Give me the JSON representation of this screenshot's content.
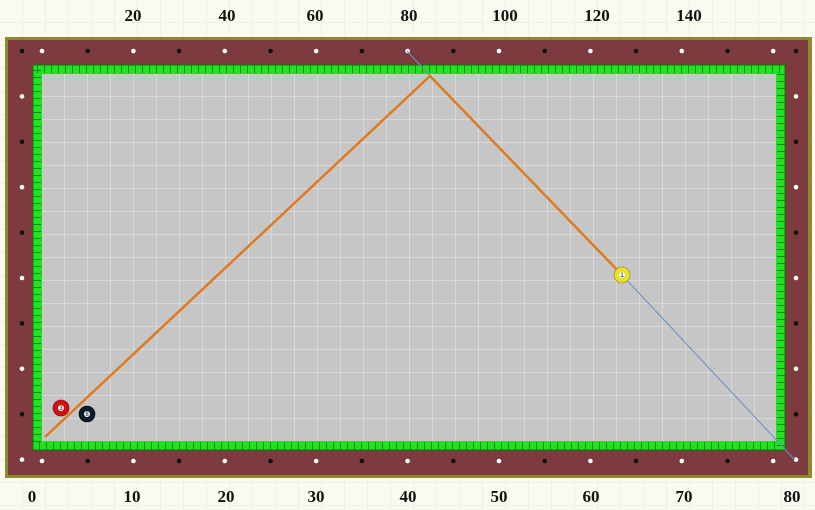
{
  "top_scale": [
    "20",
    "40",
    "60",
    "80",
    "100",
    "120",
    "140"
  ],
  "bottom_scale": [
    "0",
    "10",
    "20",
    "30",
    "40",
    "50",
    "60",
    "70",
    "80"
  ],
  "balls": [
    "3",
    "8",
    "1"
  ]
}
